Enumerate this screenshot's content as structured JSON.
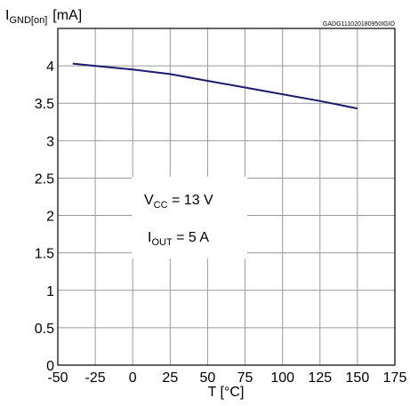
{
  "chart_data": {
    "type": "line",
    "ylabel": {
      "main": "I",
      "sub": "GND[on]",
      "unit": "[mA]"
    },
    "xlabel": "T [°C]",
    "figure_code": "GADG111020180950IGIO",
    "xlim": [
      -50,
      175
    ],
    "ylim": [
      0,
      4.5
    ],
    "x_ticks": [
      "-50",
      "-25",
      "0",
      "25",
      "50",
      "75",
      "100",
      "125",
      "150",
      "175"
    ],
    "y_ticks": [
      "0",
      "0.5",
      "1",
      "1.5",
      "2",
      "2.5",
      "3",
      "3.5",
      "4"
    ],
    "grid": true,
    "annotations": [
      {
        "main": "V",
        "sub": "CC",
        "rest": " = 13 V"
      },
      {
        "main": "I",
        "sub": "OUT",
        "rest": " = 5 A"
      }
    ],
    "series": [
      {
        "color": "#1a1a6e",
        "x": [
          -40,
          0,
          25,
          50,
          75,
          100,
          125,
          150
        ],
        "y": [
          4.03,
          3.95,
          3.89,
          3.8,
          3.71,
          3.62,
          3.53,
          3.43
        ]
      }
    ]
  }
}
